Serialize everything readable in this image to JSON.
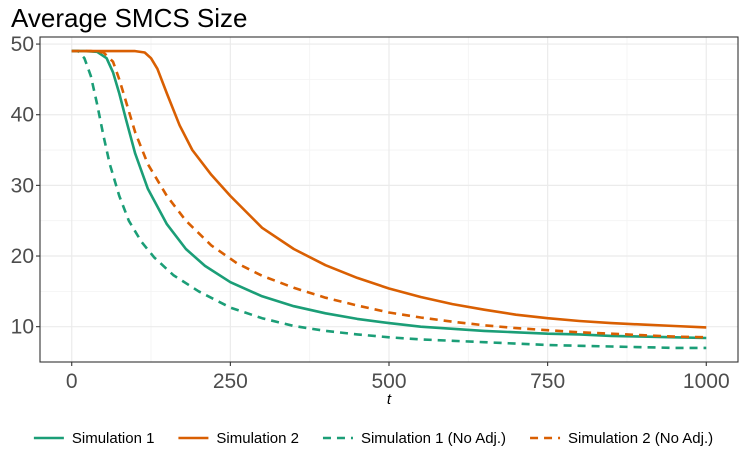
{
  "chart_data": {
    "type": "line",
    "title": "Average SMCS Size",
    "xlabel": "t",
    "ylabel": "",
    "xlim": [
      -50,
      1050
    ],
    "ylim": [
      5,
      51
    ],
    "x_ticks": [
      0,
      250,
      500,
      750,
      1000
    ],
    "x_tick_labels": [
      "0",
      "250",
      "500",
      "750",
      "1000"
    ],
    "y_ticks": [
      10,
      20,
      30,
      40,
      50
    ],
    "y_tick_labels": [
      "10",
      "20",
      "30",
      "40",
      "50"
    ],
    "grid": true,
    "legend_position": "bottom",
    "series": [
      {
        "name": "Simulation 1",
        "color": "#1b9e77",
        "dash": "solid",
        "points": [
          [
            0,
            49
          ],
          [
            20,
            49
          ],
          [
            40,
            48.9
          ],
          [
            55,
            48
          ],
          [
            65,
            46
          ],
          [
            75,
            43
          ],
          [
            85,
            39.5
          ],
          [
            100,
            34.5
          ],
          [
            120,
            29.5
          ],
          [
            150,
            24.5
          ],
          [
            180,
            21
          ],
          [
            210,
            18.6
          ],
          [
            250,
            16.3
          ],
          [
            300,
            14.3
          ],
          [
            350,
            12.9
          ],
          [
            400,
            11.9
          ],
          [
            450,
            11.1
          ],
          [
            500,
            10.5
          ],
          [
            550,
            10
          ],
          [
            600,
            9.7
          ],
          [
            650,
            9.4
          ],
          [
            700,
            9.2
          ],
          [
            750,
            9
          ],
          [
            800,
            8.9
          ],
          [
            850,
            8.7
          ],
          [
            900,
            8.6
          ],
          [
            950,
            8.5
          ],
          [
            1000,
            8.4
          ]
        ]
      },
      {
        "name": "Simulation 2",
        "color": "#d95f02",
        "dash": "solid",
        "points": [
          [
            0,
            49
          ],
          [
            50,
            49
          ],
          [
            100,
            49
          ],
          [
            115,
            48.8
          ],
          [
            125,
            48
          ],
          [
            135,
            46.5
          ],
          [
            150,
            43
          ],
          [
            170,
            38.5
          ],
          [
            190,
            35
          ],
          [
            220,
            31.5
          ],
          [
            250,
            28.5
          ],
          [
            300,
            24
          ],
          [
            350,
            21
          ],
          [
            400,
            18.7
          ],
          [
            450,
            16.9
          ],
          [
            500,
            15.4
          ],
          [
            550,
            14.2
          ],
          [
            600,
            13.2
          ],
          [
            650,
            12.4
          ],
          [
            700,
            11.7
          ],
          [
            750,
            11.2
          ],
          [
            800,
            10.8
          ],
          [
            850,
            10.5
          ],
          [
            900,
            10.3
          ],
          [
            950,
            10.1
          ],
          [
            1000,
            9.9
          ]
        ]
      },
      {
        "name": "Simulation 1 (No Adj.)",
        "color": "#1b9e77",
        "dash": "dashed",
        "points": [
          [
            0,
            49
          ],
          [
            10,
            49
          ],
          [
            20,
            48
          ],
          [
            30,
            45.5
          ],
          [
            40,
            41.5
          ],
          [
            50,
            37
          ],
          [
            60,
            33
          ],
          [
            75,
            28.5
          ],
          [
            90,
            25
          ],
          [
            110,
            22
          ],
          [
            130,
            19.8
          ],
          [
            160,
            17.3
          ],
          [
            200,
            15
          ],
          [
            250,
            12.7
          ],
          [
            300,
            11.2
          ],
          [
            350,
            10.1
          ],
          [
            400,
            9.4
          ],
          [
            450,
            8.9
          ],
          [
            500,
            8.5
          ],
          [
            550,
            8.2
          ],
          [
            600,
            8
          ],
          [
            650,
            7.8
          ],
          [
            700,
            7.6
          ],
          [
            750,
            7.4
          ],
          [
            800,
            7.3
          ],
          [
            850,
            7.2
          ],
          [
            900,
            7.1
          ],
          [
            950,
            7
          ],
          [
            1000,
            7
          ]
        ]
      },
      {
        "name": "Simulation 2 (No Adj.)",
        "color": "#d95f02",
        "dash": "dashed",
        "points": [
          [
            0,
            49
          ],
          [
            30,
            49
          ],
          [
            50,
            48.8
          ],
          [
            65,
            47.5
          ],
          [
            75,
            45
          ],
          [
            85,
            42
          ],
          [
            100,
            37.5
          ],
          [
            120,
            33
          ],
          [
            150,
            28.5
          ],
          [
            180,
            25
          ],
          [
            220,
            21.5
          ],
          [
            260,
            19
          ],
          [
            300,
            17.2
          ],
          [
            350,
            15.5
          ],
          [
            400,
            14.1
          ],
          [
            450,
            13
          ],
          [
            500,
            12
          ],
          [
            550,
            11.3
          ],
          [
            600,
            10.7
          ],
          [
            650,
            10.2
          ],
          [
            700,
            9.8
          ],
          [
            750,
            9.5
          ],
          [
            800,
            9.2
          ],
          [
            850,
            9
          ],
          [
            900,
            8.8
          ],
          [
            950,
            8.6
          ],
          [
            1000,
            8.5
          ]
        ]
      }
    ]
  }
}
